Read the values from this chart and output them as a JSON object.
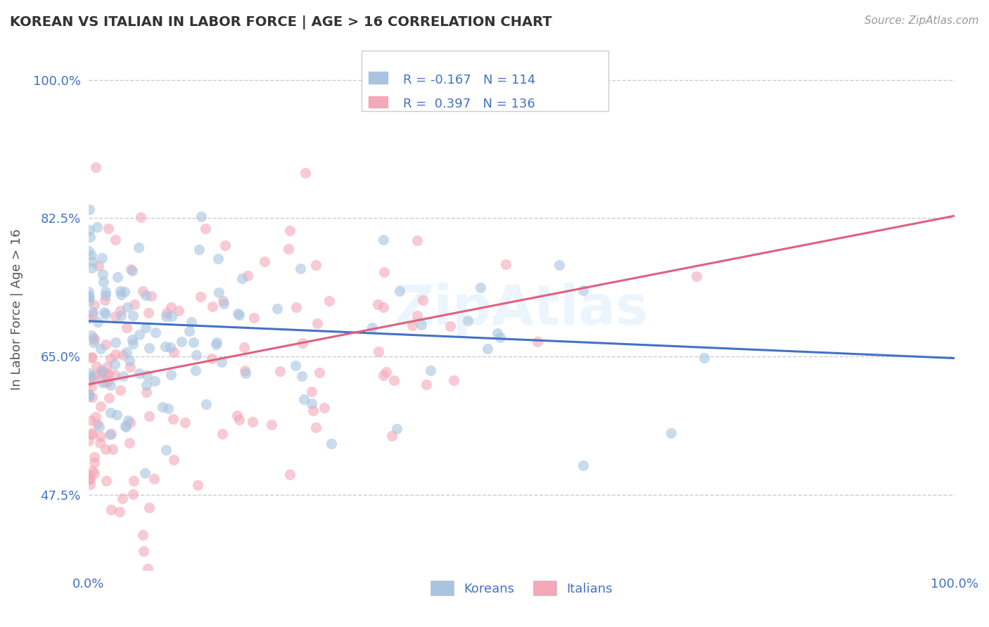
{
  "title": "KOREAN VS ITALIAN IN LABOR FORCE | AGE > 16 CORRELATION CHART",
  "source": "Source: ZipAtlas.com",
  "ylabel": "In Labor Force | Age > 16",
  "xlim": [
    0.0,
    1.0
  ],
  "ylim": [
    0.38,
    1.04
  ],
  "yticks": [
    0.475,
    0.65,
    0.825,
    1.0
  ],
  "ytick_labels": [
    "47.5%",
    "65.0%",
    "82.5%",
    "100.0%"
  ],
  "xticks": [
    0.0,
    1.0
  ],
  "xtick_labels": [
    "0.0%",
    "100.0%"
  ],
  "grid_color": "#cccccc",
  "background_color": "#ffffff",
  "korean_color": "#a8c4e0",
  "italian_color": "#f4a8b8",
  "korean_line_color": "#4472c4",
  "italian_line_color": "#e06080",
  "korean_R": -0.167,
  "korean_N": 114,
  "italian_R": 0.397,
  "italian_N": 136,
  "legend_korean_label": "Koreans",
  "legend_italian_label": "Italians",
  "title_color": "#333333",
  "axis_color": "#4472c4",
  "legend_text_color": "#4472c4",
  "korean_line_start_y": 0.695,
  "korean_line_end_y": 0.648,
  "italian_line_start_y": 0.615,
  "italian_line_end_y": 0.828
}
